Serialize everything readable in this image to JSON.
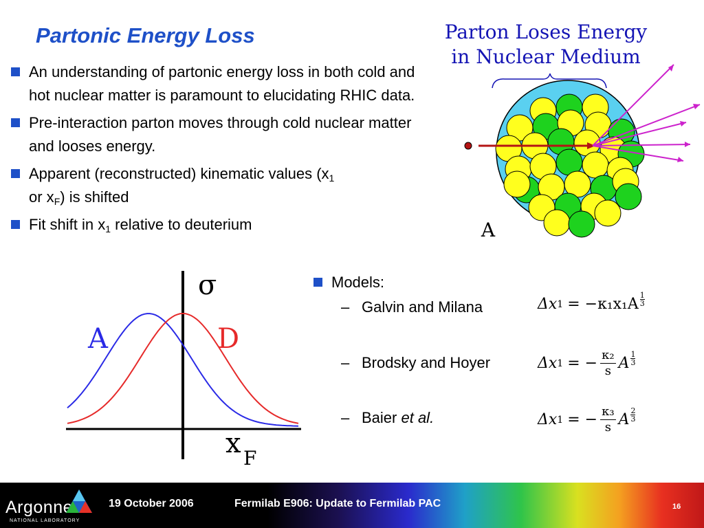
{
  "slide": {
    "title": "Partonic Energy Loss",
    "bullets": [
      {
        "text": "An understanding of partonic energy loss in both cold and hot nuclear matter is paramount to elucidating RHIC data."
      },
      {
        "text": "Pre-interaction parton moves through cold nuclear matter and looses energy."
      },
      {
        "pre": "Apparent (reconstructed) kinematic values (x",
        "sub1": "1",
        "mid": "or x",
        "sub2": "F",
        "post": ") is shifted"
      },
      {
        "pre": "Fit shift in x",
        "sub1": "1",
        "post": " relative to deuterium"
      }
    ]
  },
  "figure_nucleus": {
    "title_line1": "Parton Loses Energy",
    "title_line2": "in Nuclear Medium",
    "label": "A"
  },
  "figure_curves": {
    "y_label": "σ",
    "curve_a_label": "A",
    "curve_d_label": "D",
    "x_label": "x",
    "x_label_sub": "F"
  },
  "models": {
    "heading": "Models:",
    "items": [
      {
        "dash": "–",
        "name": "Galvin and Milana",
        "formula": {
          "lhs": "Δx",
          "lhs_sub": "1",
          "rhs": "= −κ₁x₁A",
          "exp_num": "1",
          "exp_den": "3"
        }
      },
      {
        "dash": "–",
        "name": "Brodsky and Hoyer",
        "formula": {
          "lhs": "Δx",
          "lhs_sub": "1",
          "eq": "= −",
          "num": "κ₂",
          "den": "s",
          "base": "A",
          "exp_num": "1",
          "exp_den": "3"
        }
      },
      {
        "dash": "–",
        "name_pre": "Baier ",
        "name_em": "et al.",
        "formula": {
          "lhs": "Δx",
          "lhs_sub": "1",
          "eq": "= −",
          "num": "κ₃",
          "den": "s",
          "base": "A",
          "exp_num": "2",
          "exp_den": "3"
        }
      }
    ]
  },
  "footer": {
    "logo": "Argonne",
    "logo_sub": "NATIONAL LABORATORY",
    "date": "19 October 2006",
    "conference": "Fermilab E906:  Update to Fermilab PAC",
    "page": "16"
  },
  "colors": {
    "title_blue": "#1e50c8",
    "curve_a": "#2a2ae6",
    "curve_d": "#e62a2a",
    "nucleus_bg": "#5ad0f0",
    "nucleon_yellow": "#ffff1e",
    "nucleon_green": "#1ed21e",
    "arrow_magenta": "#cc22cc",
    "parton_red": "#b41414"
  }
}
